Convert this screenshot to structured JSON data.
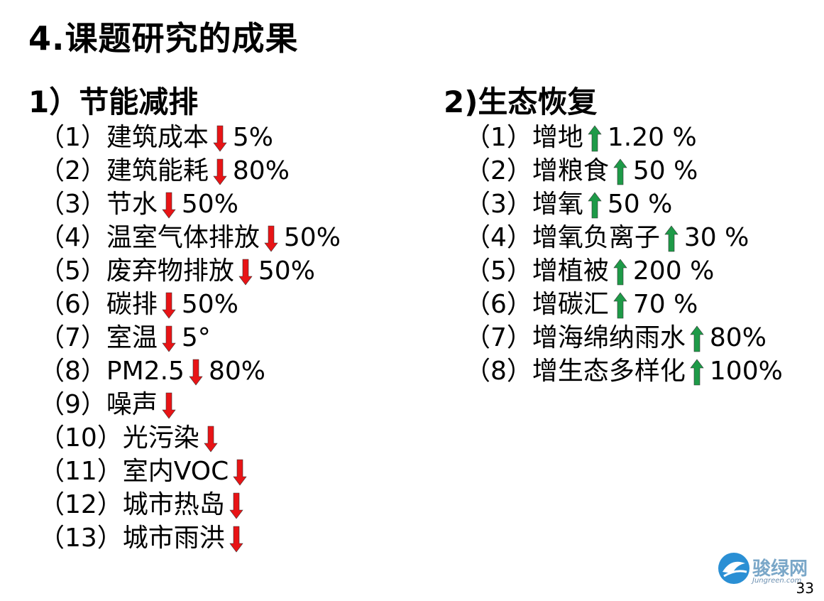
{
  "title": "4.课题研究的成果",
  "left": {
    "heading": "1）节能减排",
    "items": [
      {
        "label": "（1）建筑成本",
        "value": "5%"
      },
      {
        "label": "（2）建筑能耗",
        "value": "80%"
      },
      {
        "label": "（3）节水",
        "value": "50%"
      },
      {
        "label": "（4）温室气体排放",
        "value": "50%"
      },
      {
        "label": "（5）废弃物排放",
        "value": "50%"
      },
      {
        "label": "（6）碳排",
        "value": "50%"
      },
      {
        "label": "（7）室温",
        "value": "5°"
      },
      {
        "label": "（8）PM2.5",
        "value": "80%"
      },
      {
        "label": "（9）噪声",
        "value": ""
      },
      {
        "label": "（10）光污染",
        "value": ""
      },
      {
        "label": "（11）室内VOC",
        "value": ""
      },
      {
        "label": "（12）城市热岛",
        "value": ""
      },
      {
        "label": "（13）城市雨洪",
        "value": ""
      }
    ],
    "arrow_color": "#e81416"
  },
  "right": {
    "heading": "2)生态恢复",
    "items": [
      {
        "label": "（1）增地",
        "value": "1.20 %"
      },
      {
        "label": "（2）增粮食",
        "value": "50 %"
      },
      {
        "label": "（3）增氧",
        "value": "50 %"
      },
      {
        "label": "（4）增氧负离子",
        "value": "30 %"
      },
      {
        "label": "（5）增植被",
        "value": "200 %"
      },
      {
        "label": "（6）增碳汇",
        "value": "70 %"
      },
      {
        "label": "（7）增海绵纳雨水",
        "value": "80%"
      },
      {
        "label": "（8）增生态多样化",
        "value": "100%"
      }
    ],
    "arrow_color": "#1e9a48"
  },
  "logo": {
    "name": "骏绿网",
    "sub": "Jungreen.com"
  },
  "page_number": "33"
}
